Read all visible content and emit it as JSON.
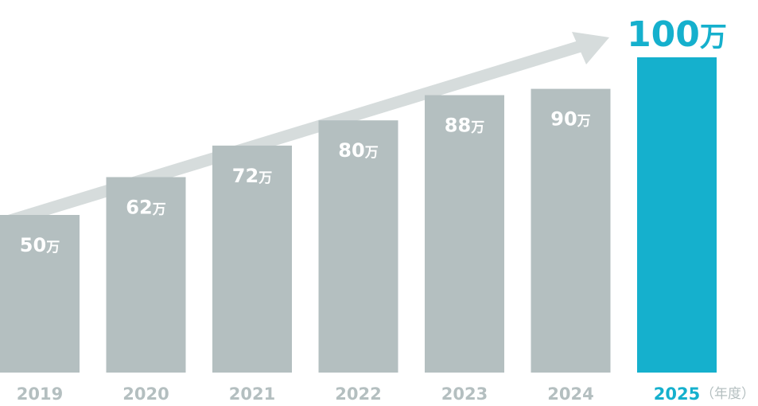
{
  "chart_data": {
    "type": "bar",
    "categories": [
      "2019",
      "2020",
      "2021",
      "2022",
      "2023",
      "2024",
      "2025"
    ],
    "values": [
      50,
      62,
      72,
      80,
      88,
      90,
      100
    ],
    "value_labels": [
      "50",
      "62",
      "72",
      "80",
      "88",
      "90",
      "100"
    ],
    "unit": "万",
    "x_unit": "（年度）",
    "highlight_index": 6,
    "ylim": [
      0,
      100
    ],
    "grid": false,
    "trend_arrow": true,
    "colors": {
      "bar": "#b4bfc0",
      "highlight": "#15b0cd",
      "arrow": "#d6dcdc",
      "label": "#ffffff",
      "tick": "#b4bfc0"
    }
  }
}
